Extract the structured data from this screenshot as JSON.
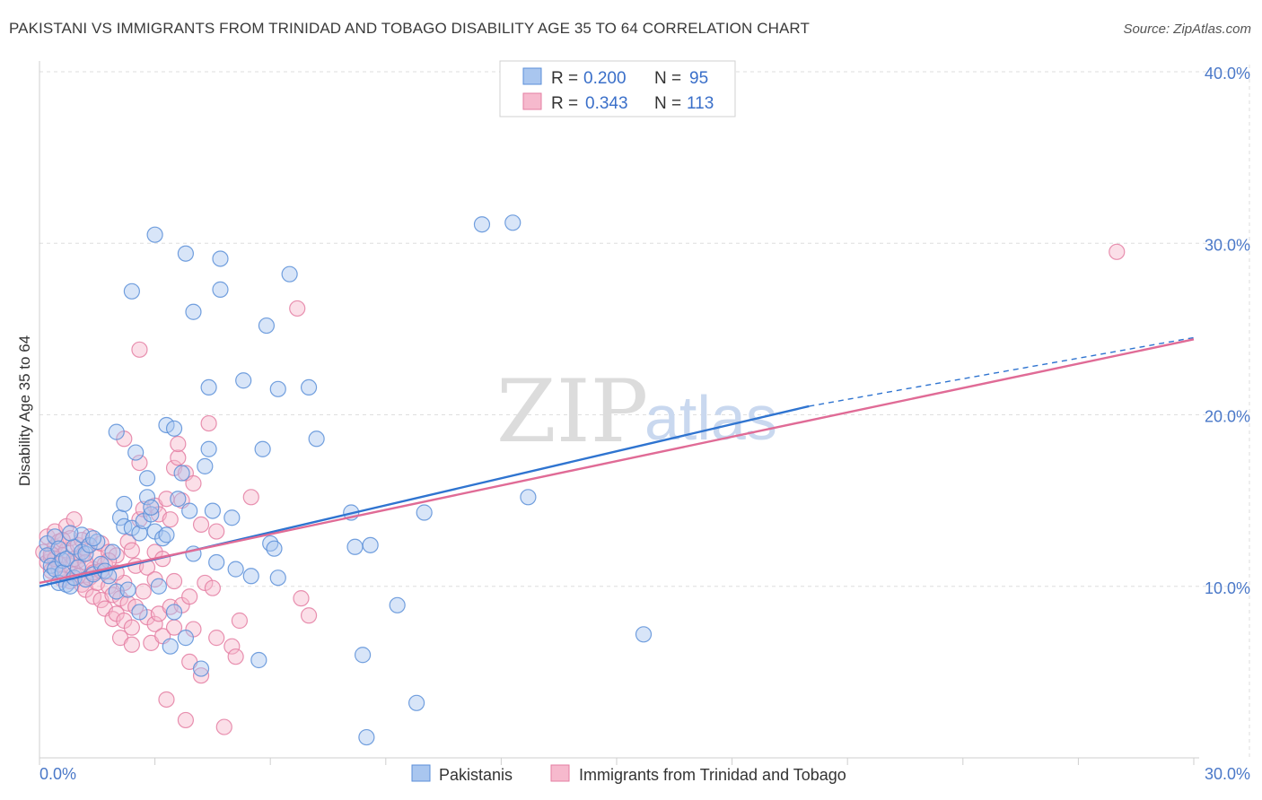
{
  "header": {
    "title": "PAKISTANI VS IMMIGRANTS FROM TRINIDAD AND TOBAGO DISABILITY AGE 35 TO 64 CORRELATION CHART",
    "source": "Source: ZipAtlas.com"
  },
  "watermark": {
    "zip": "ZIP",
    "atlas": "atlas"
  },
  "colors": {
    "blue_fill": "#a9c6ef",
    "blue_stroke": "#5b8fd8",
    "blue_line": "#2f74d0",
    "pink_fill": "#f6b9cd",
    "pink_stroke": "#e47ea2",
    "pink_line": "#e06b96",
    "grid": "#dedede",
    "tick_text": "#4a78c8"
  },
  "legend": {
    "rows": [
      {
        "r_label": "R =",
        "r_value": "0.200",
        "n_label": "N =",
        "n_value": "95"
      },
      {
        "r_label": "R =",
        "r_value": "0.343",
        "n_label": "N =",
        "n_value": "113"
      }
    ]
  },
  "chart_data": {
    "type": "scatter",
    "title": "PAKISTANI VS IMMIGRANTS FROM TRINIDAD AND TOBAGO DISABILITY AGE 35 TO 64 CORRELATION CHART",
    "xlabel": "",
    "ylabel": "Disability Age 35 to 64",
    "xlim": [
      0,
      30
    ],
    "ylim": [
      0,
      40
    ],
    "x_tick_labels": [
      "0.0%",
      "30.0%"
    ],
    "y_tick_labels": [
      {
        "value": 10,
        "label": "10.0%"
      },
      {
        "value": 20,
        "label": "20.0%"
      },
      {
        "value": 30,
        "label": "30.0%"
      },
      {
        "value": 40,
        "label": "40.0%"
      }
    ],
    "grid": true,
    "legend_position": "top-center",
    "series": [
      {
        "name": "Pakistanis",
        "color": "#5b8fd8",
        "trend": {
          "x0": 0,
          "y0": 10.0,
          "x1": 20,
          "y1": 20.5,
          "dashed_to_x": 30,
          "dashed_to_y": 24.5
        },
        "points": [
          [
            0.2,
            12.5
          ],
          [
            0.2,
            11.8
          ],
          [
            0.3,
            11.2
          ],
          [
            0.3,
            10.6
          ],
          [
            0.4,
            12.9
          ],
          [
            0.4,
            11.0
          ],
          [
            0.5,
            10.2
          ],
          [
            0.5,
            12.2
          ],
          [
            0.6,
            11.5
          ],
          [
            0.6,
            10.8
          ],
          [
            0.7,
            10.1
          ],
          [
            0.7,
            11.6
          ],
          [
            0.8,
            10.0
          ],
          [
            0.9,
            12.3
          ],
          [
            0.9,
            10.5
          ],
          [
            1.0,
            11.1
          ],
          [
            1.1,
            12.0
          ],
          [
            1.1,
            13.0
          ],
          [
            1.2,
            10.4
          ],
          [
            1.2,
            11.9
          ],
          [
            1.3,
            12.4
          ],
          [
            1.4,
            10.7
          ],
          [
            1.5,
            12.6
          ],
          [
            1.6,
            11.3
          ],
          [
            1.7,
            10.9
          ],
          [
            1.8,
            10.6
          ],
          [
            1.9,
            12.0
          ],
          [
            2.0,
            9.7
          ],
          [
            2.0,
            19.0
          ],
          [
            2.1,
            14.0
          ],
          [
            2.2,
            13.5
          ],
          [
            2.2,
            14.8
          ],
          [
            2.3,
            9.8
          ],
          [
            2.4,
            13.4
          ],
          [
            2.4,
            27.2
          ],
          [
            2.5,
            17.8
          ],
          [
            2.6,
            13.1
          ],
          [
            2.6,
            8.5
          ],
          [
            2.7,
            13.8
          ],
          [
            2.8,
            15.2
          ],
          [
            2.8,
            16.3
          ],
          [
            2.9,
            14.2
          ],
          [
            3.0,
            13.2
          ],
          [
            3.0,
            30.5
          ],
          [
            3.1,
            10.0
          ],
          [
            3.2,
            12.8
          ],
          [
            3.3,
            19.4
          ],
          [
            3.3,
            13.0
          ],
          [
            3.4,
            6.5
          ],
          [
            3.5,
            19.2
          ],
          [
            3.5,
            8.5
          ],
          [
            3.6,
            15.1
          ],
          [
            3.7,
            16.6
          ],
          [
            3.8,
            29.4
          ],
          [
            3.8,
            7.0
          ],
          [
            3.9,
            14.4
          ],
          [
            4.0,
            11.9
          ],
          [
            4.0,
            26.0
          ],
          [
            4.2,
            5.2
          ],
          [
            4.3,
            17.0
          ],
          [
            4.4,
            18.0
          ],
          [
            4.4,
            21.6
          ],
          [
            4.5,
            14.4
          ],
          [
            4.6,
            11.4
          ],
          [
            4.7,
            27.3
          ],
          [
            4.7,
            29.1
          ],
          [
            5.0,
            14.0
          ],
          [
            5.1,
            11.0
          ],
          [
            5.3,
            22.0
          ],
          [
            5.5,
            10.6
          ],
          [
            5.7,
            5.7
          ],
          [
            5.8,
            18.0
          ],
          [
            5.9,
            25.2
          ],
          [
            6.0,
            12.5
          ],
          [
            6.1,
            12.2
          ],
          [
            6.2,
            10.5
          ],
          [
            6.2,
            21.5
          ],
          [
            6.5,
            28.2
          ],
          [
            7.0,
            21.6
          ],
          [
            7.2,
            18.6
          ],
          [
            8.1,
            14.3
          ],
          [
            8.2,
            12.3
          ],
          [
            8.4,
            6.0
          ],
          [
            8.5,
            1.2
          ],
          [
            8.6,
            12.4
          ],
          [
            9.3,
            8.9
          ],
          [
            9.8,
            3.2
          ],
          [
            10.0,
            14.3
          ],
          [
            11.5,
            31.1
          ],
          [
            12.3,
            31.2
          ],
          [
            12.7,
            15.2
          ],
          [
            15.7,
            7.2
          ],
          [
            1.4,
            12.8
          ],
          [
            0.8,
            13.1
          ],
          [
            2.9,
            14.6
          ]
        ]
      },
      {
        "name": "Immigrants from Trinidad and Tobago",
        "color": "#e47ea2",
        "trend": {
          "x0": 0,
          "y0": 10.2,
          "x1": 30,
          "y1": 24.4
        },
        "points": [
          [
            0.1,
            12.0
          ],
          [
            0.2,
            11.4
          ],
          [
            0.2,
            12.9
          ],
          [
            0.3,
            11.7
          ],
          [
            0.3,
            10.9
          ],
          [
            0.4,
            12.3
          ],
          [
            0.4,
            13.2
          ],
          [
            0.5,
            11.0
          ],
          [
            0.5,
            12.6
          ],
          [
            0.6,
            11.8
          ],
          [
            0.6,
            10.4
          ],
          [
            0.7,
            12.1
          ],
          [
            0.7,
            13.5
          ],
          [
            0.8,
            11.2
          ],
          [
            0.8,
            12.8
          ],
          [
            0.9,
            10.7
          ],
          [
            0.9,
            13.9
          ],
          [
            1.0,
            11.5
          ],
          [
            1.0,
            12.4
          ],
          [
            1.1,
            10.1
          ],
          [
            1.1,
            11.8
          ],
          [
            1.2,
            9.8
          ],
          [
            1.2,
            12.2
          ],
          [
            1.3,
            10.5
          ],
          [
            1.3,
            12.9
          ],
          [
            1.4,
            11.0
          ],
          [
            1.4,
            9.4
          ],
          [
            1.5,
            11.7
          ],
          [
            1.5,
            10.2
          ],
          [
            1.6,
            12.5
          ],
          [
            1.6,
            9.2
          ],
          [
            1.7,
            11.3
          ],
          [
            1.7,
            8.7
          ],
          [
            1.8,
            12.0
          ],
          [
            1.8,
            10.0
          ],
          [
            1.9,
            9.5
          ],
          [
            1.9,
            8.1
          ],
          [
            2.0,
            11.8
          ],
          [
            2.0,
            8.4
          ],
          [
            2.1,
            9.3
          ],
          [
            2.1,
            7.0
          ],
          [
            2.2,
            10.2
          ],
          [
            2.2,
            8.0
          ],
          [
            2.2,
            18.6
          ],
          [
            2.3,
            12.6
          ],
          [
            2.3,
            9.0
          ],
          [
            2.4,
            7.6
          ],
          [
            2.4,
            6.6
          ],
          [
            2.5,
            11.2
          ],
          [
            2.5,
            8.8
          ],
          [
            2.6,
            13.9
          ],
          [
            2.6,
            17.2
          ],
          [
            2.6,
            23.8
          ],
          [
            2.7,
            9.7
          ],
          [
            2.8,
            8.2
          ],
          [
            2.8,
            11.1
          ],
          [
            2.9,
            6.7
          ],
          [
            3.0,
            14.7
          ],
          [
            3.0,
            10.4
          ],
          [
            3.0,
            7.8
          ],
          [
            3.1,
            14.2
          ],
          [
            3.1,
            8.4
          ],
          [
            3.2,
            7.1
          ],
          [
            3.3,
            15.1
          ],
          [
            3.3,
            3.4
          ],
          [
            3.4,
            13.9
          ],
          [
            3.4,
            8.8
          ],
          [
            3.5,
            16.9
          ],
          [
            3.5,
            10.3
          ],
          [
            3.5,
            7.6
          ],
          [
            3.6,
            17.5
          ],
          [
            3.6,
            18.3
          ],
          [
            3.7,
            15.0
          ],
          [
            3.7,
            8.9
          ],
          [
            3.8,
            16.6
          ],
          [
            3.8,
            2.2
          ],
          [
            3.9,
            9.4
          ],
          [
            3.9,
            5.6
          ],
          [
            4.0,
            16.0
          ],
          [
            4.0,
            7.5
          ],
          [
            4.2,
            13.6
          ],
          [
            4.2,
            4.8
          ],
          [
            4.3,
            10.2
          ],
          [
            4.4,
            19.5
          ],
          [
            4.5,
            9.9
          ],
          [
            4.6,
            7.0
          ],
          [
            4.6,
            13.2
          ],
          [
            4.8,
            1.8
          ],
          [
            5.0,
            6.5
          ],
          [
            5.1,
            5.9
          ],
          [
            5.2,
            8.0
          ],
          [
            5.5,
            15.2
          ],
          [
            6.7,
            26.2
          ],
          [
            6.8,
            9.3
          ],
          [
            7.0,
            8.3
          ],
          [
            28.0,
            29.5
          ],
          [
            0.3,
            11.9
          ],
          [
            0.5,
            11.3
          ],
          [
            0.6,
            12.7
          ],
          [
            0.9,
            11.6
          ],
          [
            1.0,
            10.6
          ],
          [
            1.2,
            11.4
          ],
          [
            1.4,
            10.8
          ],
          [
            1.6,
            10.9
          ],
          [
            1.8,
            11.5
          ],
          [
            2.0,
            10.8
          ],
          [
            2.4,
            12.1
          ],
          [
            2.7,
            14.5
          ],
          [
            3.0,
            12.0
          ],
          [
            3.2,
            11.6
          ],
          [
            0.4,
            11.6
          ],
          [
            0.8,
            10.3
          ],
          [
            1.1,
            12.7
          ]
        ]
      }
    ]
  },
  "bottom_legend": {
    "items": [
      {
        "label": "Pakistanis"
      },
      {
        "label": "Immigrants from Trinidad and Tobago"
      }
    ]
  }
}
